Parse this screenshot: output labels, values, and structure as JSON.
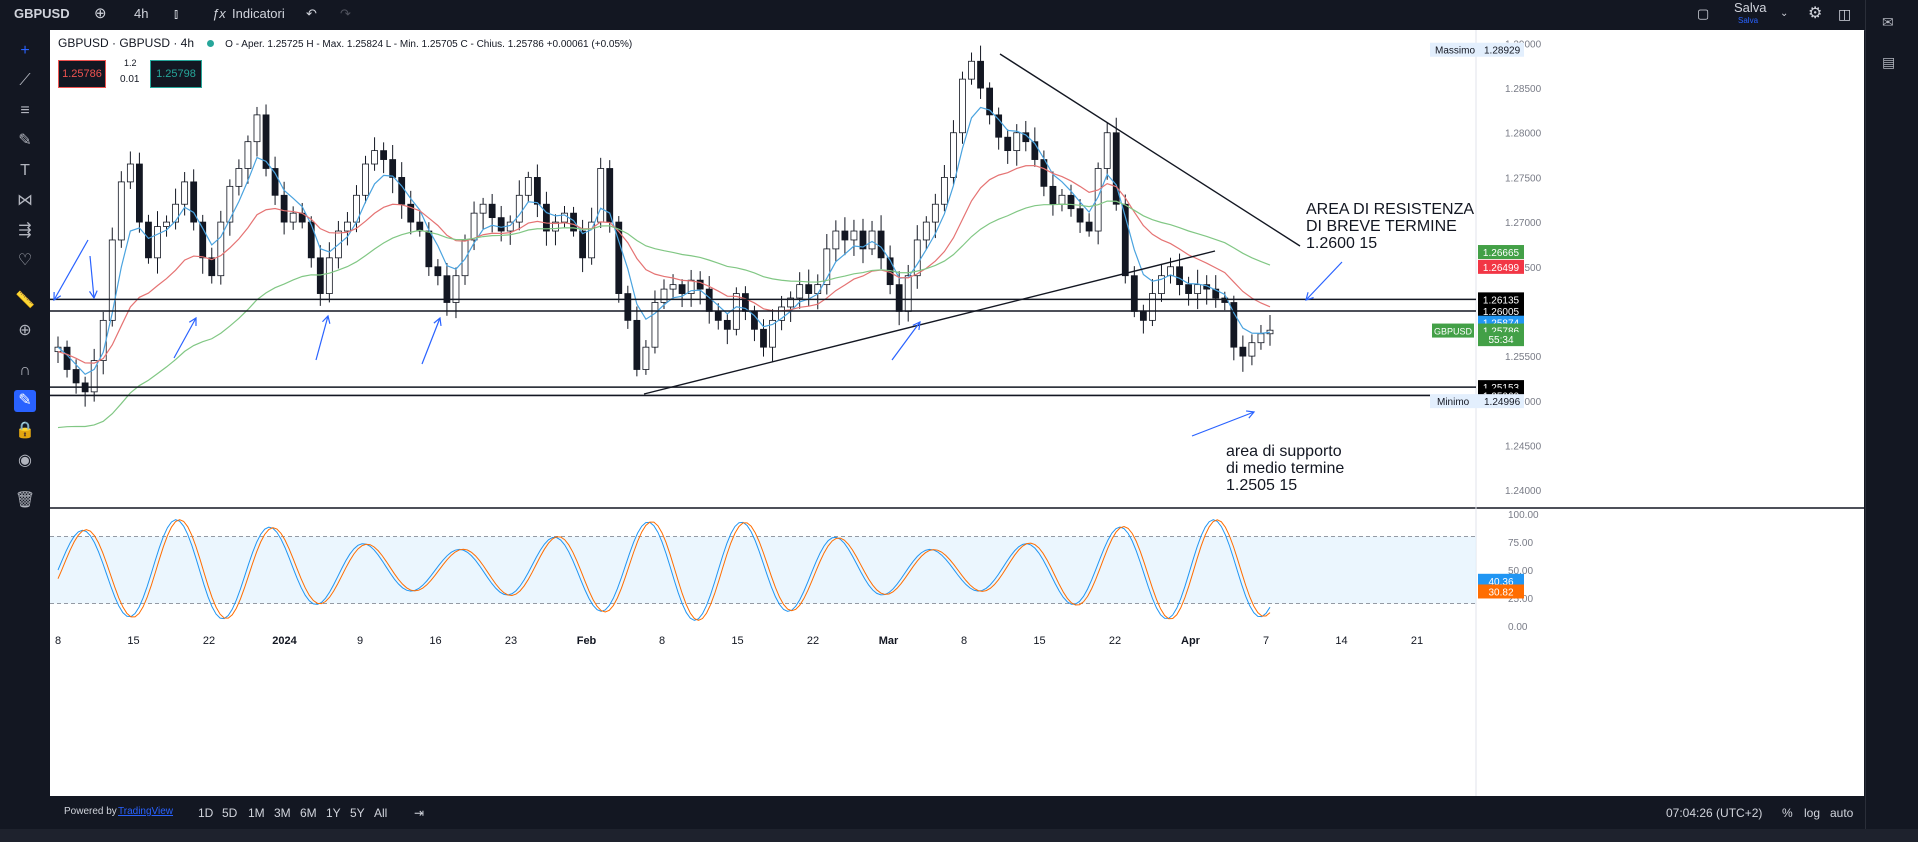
{
  "toolbar": {
    "symbol": "GBPUSD",
    "interval": "4h",
    "indicators": "Indicatori",
    "save": "Salva",
    "save_sub": "Salva"
  },
  "legend": {
    "title": "GBPUSD · GBPUSD · 4h",
    "ohlc": "O - Aper. 1.25725  H - Max. 1.25824  L - Min. 1.25705  C - Chius. 1.25786  +0.00061 (+0.05%)",
    "bid": "1.25786",
    "spread_top": "1.2",
    "spread": "0.01",
    "ask": "1.25798"
  },
  "price_axis": {
    "ticks": [
      "1.29000",
      "1.28500",
      "1.28000",
      "1.27500",
      "1.27000",
      "1.26500",
      "1.25500",
      "1.25000",
      "1.24500",
      "1.24000"
    ],
    "labels": [
      {
        "text": "1.26665",
        "color": "#43a047",
        "value": 1.26665
      },
      {
        "text": "1.26499",
        "color": "#f23645",
        "value": 1.26499
      },
      {
        "text": "1.26135",
        "color": "#000000",
        "value": 1.26135
      },
      {
        "text": "1.26005",
        "color": "#000000",
        "value": 1.26005
      },
      {
        "text": "1.25874",
        "color": "#2196f3",
        "value": 1.25874
      },
      {
        "text": "1.25786",
        "color": "#43a047",
        "value": 1.25786
      },
      {
        "text": "55:34",
        "color": "#43a047",
        "value": 1.2569
      },
      {
        "text": "1.25153",
        "color": "#000000",
        "value": 1.25153
      },
      {
        "text": "1.25060",
        "color": "#000000",
        "value": 1.2506
      }
    ],
    "massimo_label": "Massimo",
    "massimo_value": "1.28929",
    "minimo_label": "Minimo",
    "minimo_value": "1.24996",
    "symbol_tag": "GBPUSD"
  },
  "time_axis": [
    "8",
    "15",
    "22",
    "2024",
    "9",
    "16",
    "23",
    "Feb",
    "8",
    "15",
    "22",
    "Mar",
    "8",
    "15",
    "22",
    "Apr",
    "7",
    "14",
    "21"
  ],
  "osc_axis": [
    "100.00",
    "75.00",
    "50.00",
    "25.00",
    "0.00"
  ],
  "osc_labels": {
    "k": "40.36",
    "d": "30.82"
  },
  "annotations": {
    "resistance": [
      "AREA DI RESISTENZA",
      "DI BREVE TERMINE",
      "1.2600 15"
    ],
    "support": [
      "area di supporto",
      "di medio termine",
      "1.2505 15"
    ]
  },
  "bottom": {
    "powered": "Powered by",
    "tv": "TradingView",
    "ranges": [
      "1D",
      "5D",
      "1M",
      "3M",
      "6M",
      "1Y",
      "5Y",
      "All"
    ],
    "clock": "07:04:26 (UTC+2)",
    "pct": "%",
    "log": "log",
    "auto": "auto"
  },
  "colors": {
    "up": "#26a69a",
    "down": "#ef5350",
    "ema_fast": "#4aa3df",
    "ema_mid": "#e57373",
    "ema_slow": "#81c784"
  },
  "chart_data": {
    "type": "candlestick",
    "title": "GBPUSD · GBPUSD · 4h",
    "ylim": [
      1.238,
      1.2915
    ],
    "approx_closes": [
      1.256,
      1.2535,
      1.252,
      1.251,
      1.2545,
      1.259,
      1.268,
      1.2745,
      1.2765,
      1.27,
      1.266,
      1.2695,
      1.27,
      1.272,
      1.2745,
      1.27,
      1.266,
      1.264,
      1.27,
      1.274,
      1.276,
      1.279,
      1.282,
      1.276,
      1.273,
      1.27,
      1.271,
      1.27,
      1.266,
      1.262,
      1.266,
      1.269,
      1.27,
      1.273,
      1.2765,
      1.278,
      1.277,
      1.275,
      1.272,
      1.27,
      1.269,
      1.265,
      1.264,
      1.261,
      1.264,
      1.268,
      1.271,
      1.272,
      1.2705,
      1.269,
      1.27,
      1.273,
      1.275,
      1.272,
      1.269,
      1.27,
      1.271,
      1.269,
      1.266,
      1.27,
      1.276,
      1.27,
      1.262,
      1.259,
      1.2535,
      1.256,
      1.261,
      1.2625,
      1.263,
      1.262,
      1.2635,
      1.2625,
      1.26,
      1.259,
      1.258,
      1.262,
      1.26,
      1.258,
      1.256,
      1.259,
      1.2605,
      1.2615,
      1.263,
      1.262,
      1.263,
      1.267,
      1.269,
      1.268,
      1.269,
      1.267,
      1.269,
      1.266,
      1.263,
      1.26,
      1.264,
      1.268,
      1.27,
      1.272,
      1.275,
      1.28,
      1.286,
      1.288,
      1.285,
      1.282,
      1.2795,
      1.278,
      1.28,
      1.279,
      1.277,
      1.274,
      1.272,
      1.273,
      1.2715,
      1.27,
      1.269,
      1.276,
      1.28,
      1.272,
      1.264,
      1.26,
      1.259,
      1.262,
      1.264,
      1.265,
      1.263,
      1.262,
      1.263,
      1.2625,
      1.2615,
      1.261,
      1.256,
      1.255,
      1.2565,
      1.2575,
      1.2579
    ],
    "hlines": [
      1.26135,
      1.26005,
      1.25153,
      1.2506
    ]
  }
}
